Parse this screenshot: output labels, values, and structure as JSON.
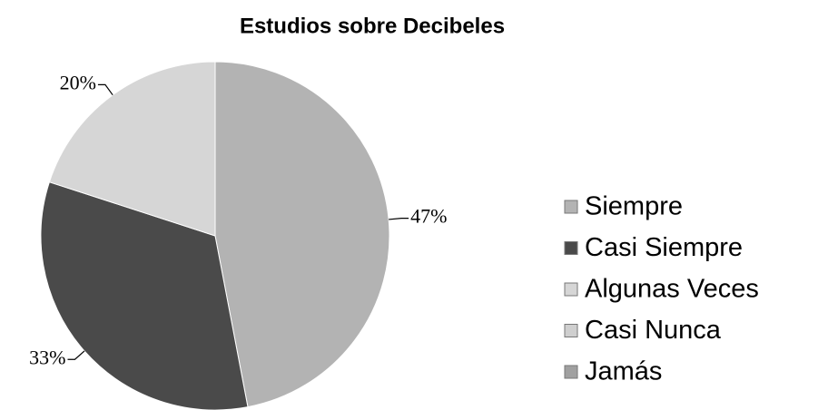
{
  "chart_data": {
    "type": "pie",
    "title": "Estudios sobre Decibeles",
    "categories": [
      "Siempre",
      "Casi Siempre",
      "Algunas Veces",
      "Casi Nunca",
      "Jamás"
    ],
    "values": [
      47,
      33,
      20,
      0,
      0
    ],
    "value_labels": [
      "47%",
      "33%",
      "20%",
      null,
      null
    ],
    "colors": [
      "#b3b3b3",
      "#4a4a4a",
      "#d6d6d6",
      "#cfcfcf",
      "#a0a0a0"
    ],
    "legend": "right"
  }
}
